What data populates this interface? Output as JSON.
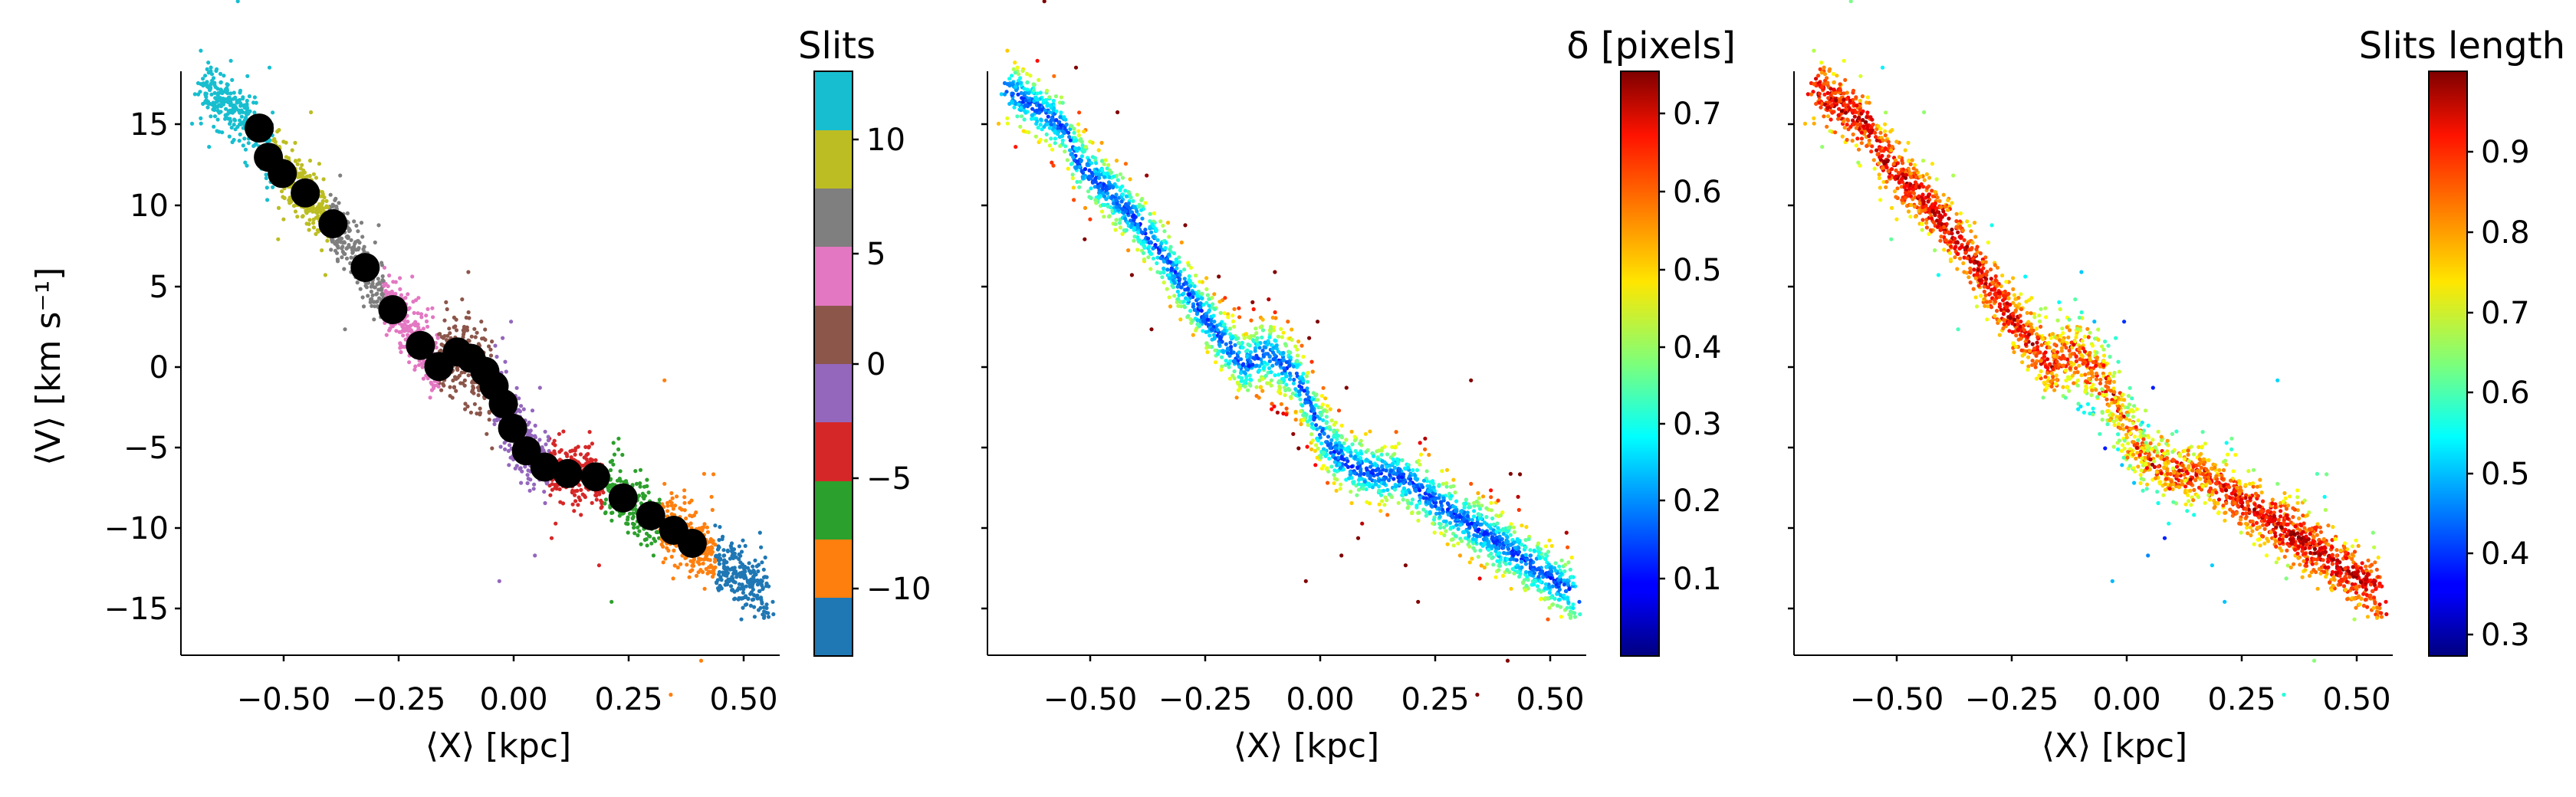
{
  "chart_data": [
    {
      "type": "scatter",
      "xlabel": "⟨X⟩ [kpc]",
      "ylabel": "⟨V⟩ [km s⁻¹]",
      "xlim": [
        -0.7,
        0.6
      ],
      "ylim": [
        -18,
        18
      ],
      "xticks": [
        "−0.50",
        "−0.25",
        "0.00",
        "0.25",
        "0.50"
      ],
      "yticks": [
        "15",
        "10",
        "5",
        "0",
        "−5",
        "−10",
        "−15"
      ],
      "colorbar": {
        "title": "Slits",
        "range": [
          -12,
          12
        ],
        "ticks": [
          "10",
          "5",
          "0",
          "−5",
          "−10"
        ],
        "colors": [
          "#1f77b4",
          "#ff7f0e",
          "#2ca02c",
          "#d62728",
          "#9467bd",
          "#8c564b",
          "#e377c2",
          "#7f7f7f",
          "#bcbd22",
          "#17becf"
        ]
      },
      "series": [
        {
          "marker": "large black circle",
          "points": [
            [
              -0.53,
              14.5
            ],
            [
              -0.51,
              12.7
            ],
            [
              -0.48,
              11.7
            ],
            [
              -0.43,
              10.5
            ],
            [
              -0.37,
              8.6
            ],
            [
              -0.3,
              5.9
            ],
            [
              -0.24,
              3.3
            ],
            [
              -0.18,
              1.1
            ],
            [
              -0.14,
              -0.2
            ],
            [
              -0.1,
              0.7
            ],
            [
              -0.07,
              0.3
            ],
            [
              -0.04,
              -0.5
            ],
            [
              -0.02,
              -1.4
            ],
            [
              0.0,
              -2.5
            ],
            [
              0.02,
              -4.0
            ],
            [
              0.05,
              -5.4
            ],
            [
              0.09,
              -6.4
            ],
            [
              0.14,
              -6.8
            ],
            [
              0.2,
              -7.0
            ],
            [
              0.26,
              -8.3
            ],
            [
              0.32,
              -9.4
            ],
            [
              0.37,
              -10.3
            ],
            [
              0.41,
              -11.1
            ]
          ]
        }
      ]
    },
    {
      "type": "scatter",
      "xlabel": "⟨X⟩ [kpc]",
      "xlim": [
        -0.7,
        0.6
      ],
      "ylim": [
        -18,
        18
      ],
      "xticks": [
        "−0.50",
        "−0.25",
        "0.00",
        "0.25",
        "0.50"
      ],
      "colorbar": {
        "title": "δ [pixels]",
        "range": [
          0.0,
          0.75
        ],
        "ticks": [
          "0.7",
          "0.6",
          "0.5",
          "0.4",
          "0.3",
          "0.2",
          "0.1"
        ],
        "colormap": "jet"
      }
    },
    {
      "type": "scatter",
      "xlabel": "⟨X⟩ [kpc]",
      "xlim": [
        -0.7,
        0.6
      ],
      "ylim": [
        -18,
        18
      ],
      "xticks": [
        "−0.50",
        "−0.25",
        "0.00",
        "0.25",
        "0.50"
      ],
      "colorbar": {
        "title": "Slits length",
        "range": [
          0.27,
          1.0
        ],
        "ticks": [
          "0.9",
          "0.8",
          "0.7",
          "0.6",
          "0.5",
          "0.4",
          "0.3"
        ],
        "colormap": "jet"
      }
    }
  ]
}
